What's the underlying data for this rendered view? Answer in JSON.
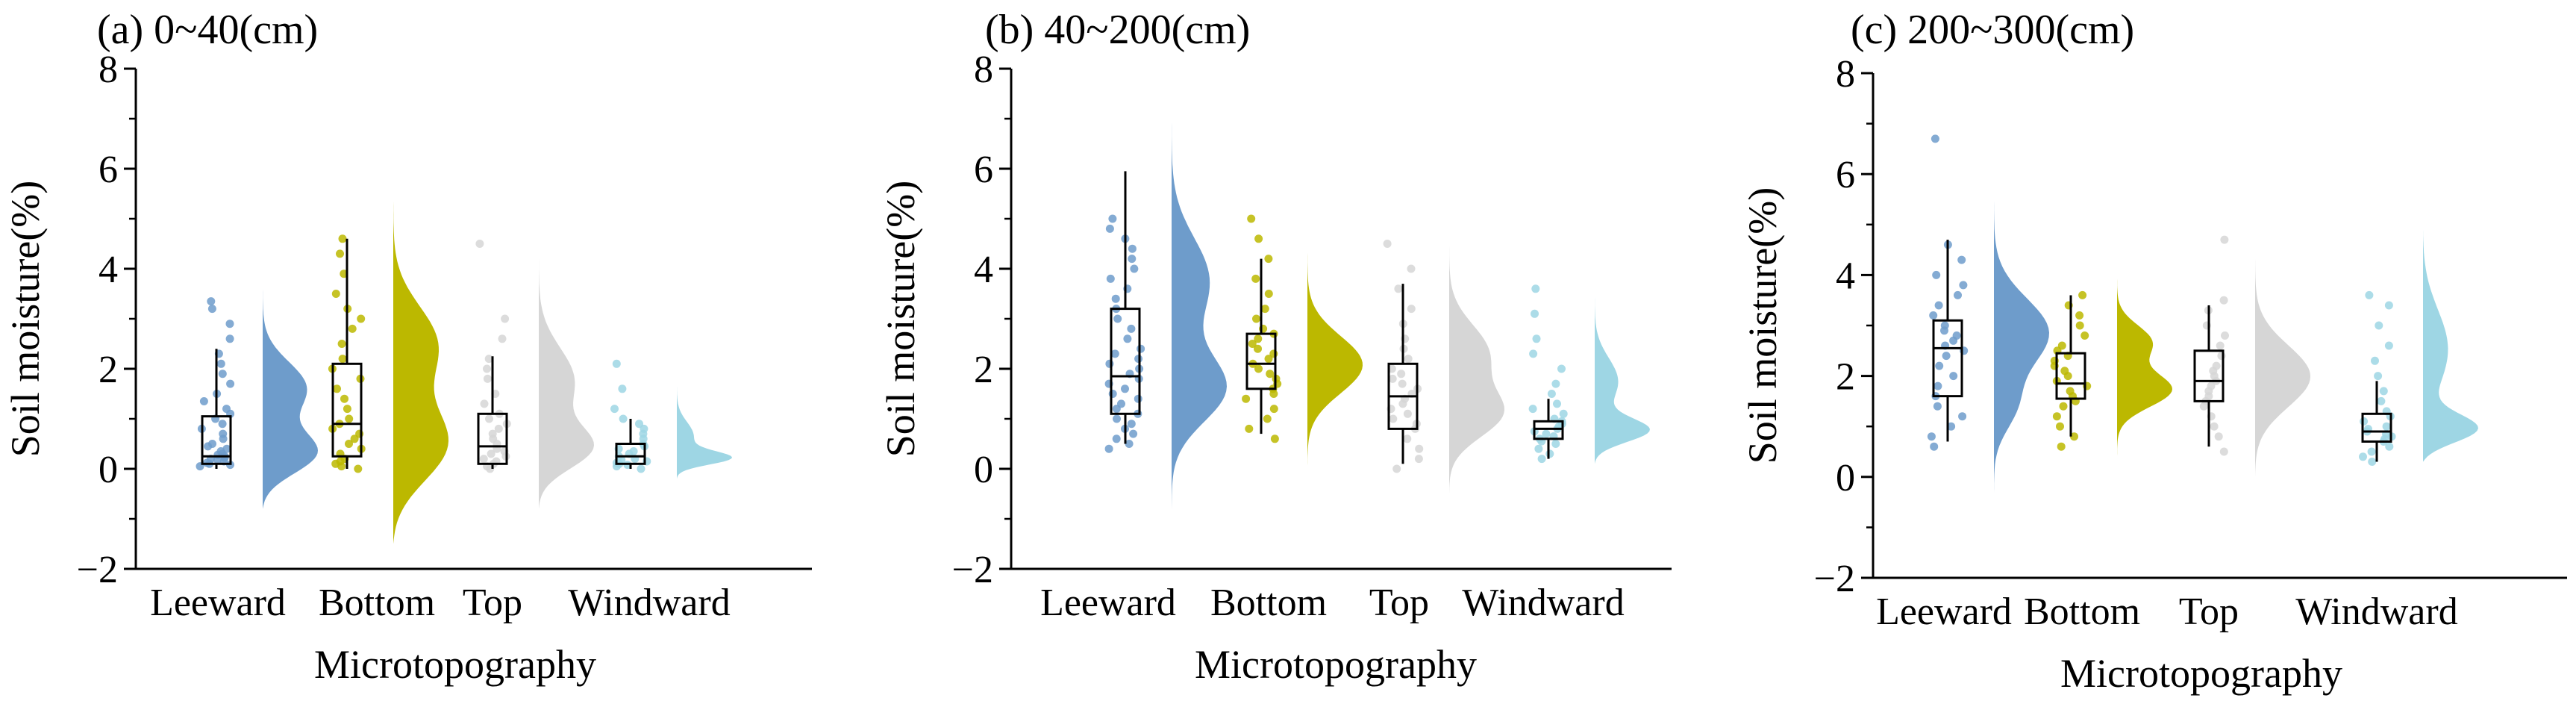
{
  "figure": {
    "colors": {
      "Leeward": "#6e9ccb",
      "Bottom": "#bcb800",
      "Top": "#d6d6d6",
      "Windward": "#9ed6e4"
    }
  },
  "chart_data": [
    {
      "type": "raincloud",
      "title": "(a) 0~40(cm)",
      "xlabel": "Microtopography",
      "ylabel": "Soil moisture(%)",
      "ylim": [
        -2,
        8
      ],
      "yticks": [
        -2,
        0,
        2,
        4,
        6,
        8
      ],
      "yticklabels": [
        "−2",
        "0",
        "2",
        "4",
        "6",
        "8"
      ],
      "categories": [
        "Leeward",
        "Bottom",
        "Top",
        "Windward"
      ],
      "series": [
        {
          "name": "Leeward",
          "color": "#6e9ccb",
          "box": {
            "whisker_low": 0.0,
            "q1": 0.1,
            "median": 0.25,
            "q3": 1.05,
            "whisker_high": 2.4
          },
          "points": [
            0.05,
            0.08,
            0.1,
            0.12,
            0.15,
            0.18,
            0.2,
            0.22,
            0.25,
            0.28,
            0.3,
            0.35,
            0.4,
            0.45,
            0.5,
            0.6,
            0.7,
            0.8,
            0.9,
            1.0,
            1.1,
            1.2,
            1.35,
            1.5,
            1.7,
            1.9,
            2.1,
            2.3,
            2.6,
            2.9,
            3.2,
            3.35
          ],
          "density": {
            "min": -0.8,
            "max": 4.2,
            "peaks": [
              {
                "at": 0.2,
                "w": 0.45,
                "h": 1.0
              },
              {
                "at": 1.6,
                "w": 0.55,
                "h": 0.55
              }
            ]
          }
        },
        {
          "name": "Bottom",
          "color": "#bcb800",
          "box": {
            "whisker_low": 0.0,
            "q1": 0.25,
            "median": 0.9,
            "q3": 2.1,
            "whisker_high": 4.6
          },
          "points": [
            0.0,
            0.05,
            0.1,
            0.15,
            0.2,
            0.3,
            0.4,
            0.5,
            0.6,
            0.7,
            0.8,
            0.9,
            1.0,
            1.2,
            1.4,
            1.6,
            1.8,
            2.0,
            2.2,
            2.5,
            2.8,
            3.0,
            3.2,
            3.5,
            3.9,
            4.3,
            4.6
          ],
          "density": {
            "min": -1.5,
            "max": 6.2,
            "peaks": [
              {
                "at": 0.3,
                "w": 0.8,
                "h": 1.0
              },
              {
                "at": 2.5,
                "w": 0.8,
                "h": 0.6
              }
            ]
          }
        },
        {
          "name": "Top",
          "color": "#d6d6d6",
          "box": {
            "whisker_low": 0.0,
            "q1": 0.1,
            "median": 0.45,
            "q3": 1.1,
            "whisker_high": 2.25
          },
          "points": [
            0.0,
            0.05,
            0.1,
            0.15,
            0.2,
            0.25,
            0.3,
            0.35,
            0.4,
            0.5,
            0.6,
            0.7,
            0.8,
            0.9,
            1.0,
            1.1,
            1.3,
            1.5,
            1.8,
            2.0,
            2.2,
            2.6,
            3.0,
            4.5
          ],
          "density": {
            "min": -0.8,
            "max": 5.2,
            "peaks": [
              {
                "at": 0.3,
                "w": 0.45,
                "h": 1.0
              },
              {
                "at": 1.7,
                "w": 0.7,
                "h": 0.45
              }
            ]
          }
        },
        {
          "name": "Windward",
          "color": "#9ed6e4",
          "box": {
            "whisker_low": 0.0,
            "q1": 0.1,
            "median": 0.25,
            "q3": 0.5,
            "whisker_high": 1.0
          },
          "points": [
            0.0,
            0.05,
            0.08,
            0.1,
            0.12,
            0.15,
            0.18,
            0.2,
            0.25,
            0.3,
            0.35,
            0.4,
            0.45,
            0.5,
            0.6,
            0.7,
            0.8,
            0.9,
            1.0,
            1.2,
            1.6,
            2.1
          ],
          "density": {
            "min": -0.2,
            "max": 2.4,
            "peaks": [
              {
                "at": 0.18,
                "w": 0.14,
                "h": 1.0
              },
              {
                "at": 0.6,
                "w": 0.3,
                "h": 0.2
              }
            ]
          }
        }
      ]
    },
    {
      "type": "raincloud",
      "title": "(b) 40~200(cm)",
      "xlabel": "Microtopography",
      "ylabel": "Soil moisture(%)",
      "ylim": [
        -2,
        8
      ],
      "yticks": [
        -2,
        0,
        2,
        4,
        6,
        8
      ],
      "yticklabels": [
        "−2",
        "0",
        "2",
        "4",
        "6",
        "8"
      ],
      "categories": [
        "Leeward",
        "Bottom",
        "Top",
        "Windward"
      ],
      "series": [
        {
          "name": "Leeward",
          "color": "#6e9ccb",
          "box": {
            "whisker_low": 0.5,
            "q1": 1.1,
            "median": 1.85,
            "q3": 3.2,
            "whisker_high": 5.95
          },
          "points": [
            0.4,
            0.5,
            0.6,
            0.7,
            0.8,
            0.9,
            1.0,
            1.1,
            1.2,
            1.3,
            1.4,
            1.5,
            1.6,
            1.7,
            1.8,
            1.9,
            2.0,
            2.1,
            2.2,
            2.3,
            2.4,
            2.6,
            2.8,
            3.0,
            3.2,
            3.4,
            3.6,
            3.8,
            4.0,
            4.2,
            4.4,
            4.6,
            4.8,
            5.0
          ],
          "density": {
            "min": -1.0,
            "max": 7.5,
            "peaks": [
              {
                "at": 1.5,
                "w": 0.7,
                "h": 1.0
              },
              {
                "at": 3.8,
                "w": 0.9,
                "h": 0.6
              }
            ]
          }
        },
        {
          "name": "Bottom",
          "color": "#bcb800",
          "box": {
            "whisker_low": 0.7,
            "q1": 1.6,
            "median": 2.1,
            "q3": 2.7,
            "whisker_high": 4.2
          },
          "points": [
            0.6,
            0.8,
            1.0,
            1.2,
            1.4,
            1.5,
            1.6,
            1.7,
            1.8,
            1.9,
            2.0,
            2.1,
            2.2,
            2.3,
            2.4,
            2.5,
            2.6,
            2.7,
            2.8,
            3.0,
            3.2,
            3.5,
            3.8,
            4.2,
            4.6,
            5.0
          ],
          "density": {
            "min": 0.0,
            "max": 5.8,
            "peaks": [
              {
                "at": 2.0,
                "w": 0.6,
                "h": 1.0
              }
            ]
          }
        },
        {
          "name": "Top",
          "color": "#d6d6d6",
          "box": {
            "whisker_low": 0.1,
            "q1": 0.8,
            "median": 1.45,
            "q3": 2.1,
            "whisker_high": 3.7
          },
          "points": [
            0.0,
            0.2,
            0.4,
            0.6,
            0.8,
            0.9,
            1.0,
            1.1,
            1.2,
            1.3,
            1.4,
            1.5,
            1.6,
            1.7,
            1.8,
            1.9,
            2.0,
            2.2,
            2.4,
            2.6,
            2.9,
            3.2,
            3.6,
            4.0,
            4.5
          ],
          "density": {
            "min": -0.5,
            "max": 5.3,
            "peaks": [
              {
                "at": 1.0,
                "w": 0.5,
                "h": 1.0
              },
              {
                "at": 2.3,
                "w": 0.6,
                "h": 0.6
              }
            ]
          }
        },
        {
          "name": "Windward",
          "color": "#9ed6e4",
          "box": {
            "whisker_low": 0.2,
            "q1": 0.6,
            "median": 0.8,
            "q3": 0.95,
            "whisker_high": 1.4
          },
          "points": [
            0.2,
            0.3,
            0.4,
            0.5,
            0.55,
            0.6,
            0.65,
            0.7,
            0.75,
            0.8,
            0.85,
            0.9,
            0.95,
            1.0,
            1.1,
            1.2,
            1.3,
            1.5,
            1.7,
            2.0,
            2.3,
            2.6,
            3.1,
            3.6
          ],
          "density": {
            "min": 0.1,
            "max": 4.0,
            "peaks": [
              {
                "at": 0.7,
                "w": 0.25,
                "h": 1.0
              },
              {
                "at": 1.7,
                "w": 0.5,
                "h": 0.25
              }
            ]
          }
        }
      ]
    },
    {
      "type": "raincloud",
      "title": "(c) 200~300(cm)",
      "xlabel": "Microtopography",
      "ylabel": "Soil moisture(%)",
      "ylim": [
        -2,
        8
      ],
      "yticks": [
        -2,
        0,
        2,
        4,
        6,
        8
      ],
      "yticklabels": [
        "−2",
        "0",
        "2",
        "4",
        "6",
        "8"
      ],
      "categories": [
        "Leeward",
        "Bottom",
        "Top",
        "Windward"
      ],
      "series": [
        {
          "name": "Leeward",
          "color": "#6e9ccb",
          "box": {
            "whisker_low": 0.7,
            "q1": 1.6,
            "median": 2.55,
            "q3": 3.1,
            "whisker_high": 4.7
          },
          "points": [
            0.6,
            0.8,
            1.0,
            1.2,
            1.4,
            1.6,
            1.8,
            2.0,
            2.2,
            2.4,
            2.5,
            2.6,
            2.7,
            2.8,
            2.9,
            3.0,
            3.2,
            3.4,
            3.6,
            3.8,
            4.0,
            4.3,
            4.6,
            6.7
          ],
          "density": {
            "min": -0.5,
            "max": 7.9,
            "peaks": [
              {
                "at": 2.8,
                "w": 0.7,
                "h": 1.0
              },
              {
                "at": 1.3,
                "w": 0.5,
                "h": 0.5
              }
            ]
          }
        },
        {
          "name": "Bottom",
          "color": "#bcb800",
          "box": {
            "whisker_low": 0.8,
            "q1": 1.55,
            "median": 1.85,
            "q3": 2.45,
            "whisker_high": 3.6
          },
          "points": [
            0.6,
            0.8,
            1.0,
            1.2,
            1.4,
            1.5,
            1.6,
            1.7,
            1.8,
            1.9,
            2.0,
            2.1,
            2.2,
            2.3,
            2.4,
            2.5,
            2.6,
            2.8,
            3.0,
            3.2,
            3.4,
            3.6
          ],
          "density": {
            "min": 0.1,
            "max": 4.2,
            "peaks": [
              {
                "at": 1.7,
                "w": 0.35,
                "h": 1.0
              },
              {
                "at": 2.7,
                "w": 0.35,
                "h": 0.65
              }
            ]
          }
        },
        {
          "name": "Top",
          "color": "#d6d6d6",
          "box": {
            "whisker_low": 0.6,
            "q1": 1.5,
            "median": 1.9,
            "q3": 2.5,
            "whisker_high": 3.4
          },
          "points": [
            0.5,
            0.8,
            1.0,
            1.2,
            1.4,
            1.5,
            1.6,
            1.7,
            1.8,
            1.9,
            2.0,
            2.1,
            2.2,
            2.4,
            2.6,
            2.8,
            3.0,
            3.3,
            3.5,
            4.7
          ],
          "density": {
            "min": 0.0,
            "max": 5.4,
            "peaks": [
              {
                "at": 1.9,
                "w": 0.65,
                "h": 1.0
              }
            ]
          }
        },
        {
          "name": "Windward",
          "color": "#9ed6e4",
          "box": {
            "whisker_low": 0.3,
            "q1": 0.7,
            "median": 0.9,
            "q3": 1.25,
            "whisker_high": 1.9
          },
          "points": [
            0.3,
            0.4,
            0.5,
            0.6,
            0.7,
            0.75,
            0.8,
            0.85,
            0.9,
            0.95,
            1.0,
            1.1,
            1.2,
            1.3,
            1.5,
            1.7,
            2.0,
            2.3,
            2.6,
            3.0,
            3.4,
            3.6
          ],
          "density": {
            "min": 0.3,
            "max": 4.9,
            "peaks": [
              {
                "at": 0.85,
                "w": 0.3,
                "h": 1.0
              },
              {
                "at": 2.5,
                "w": 0.9,
                "h": 0.22
              }
            ]
          }
        }
      ]
    }
  ]
}
